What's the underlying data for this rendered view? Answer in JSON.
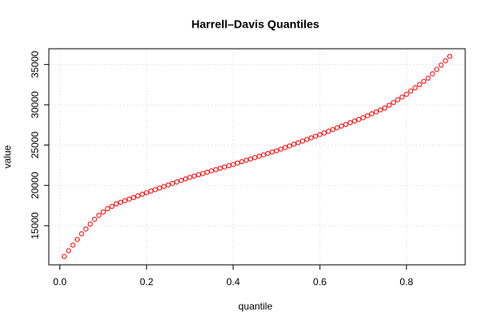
{
  "chart_data": {
    "type": "scatter",
    "title": "Harrell–Davis Quantiles",
    "x_label": "quantile",
    "y_label": "value",
    "x": [
      0.01,
      0.02,
      0.03,
      0.04,
      0.05,
      0.06,
      0.07,
      0.08,
      0.09,
      0.1,
      0.11,
      0.12,
      0.13,
      0.14,
      0.15,
      0.16,
      0.17,
      0.18,
      0.19,
      0.2,
      0.21,
      0.22,
      0.23,
      0.24,
      0.25,
      0.26,
      0.27,
      0.28,
      0.29,
      0.3,
      0.31,
      0.32,
      0.33,
      0.34,
      0.35,
      0.36,
      0.37,
      0.38,
      0.39,
      0.4,
      0.41,
      0.42,
      0.43,
      0.44,
      0.45,
      0.46,
      0.47,
      0.48,
      0.49,
      0.5,
      0.51,
      0.52,
      0.53,
      0.54,
      0.55,
      0.56,
      0.57,
      0.58,
      0.59,
      0.6,
      0.61,
      0.62,
      0.63,
      0.64,
      0.65,
      0.66,
      0.67,
      0.68,
      0.69,
      0.7,
      0.71,
      0.72,
      0.73,
      0.74,
      0.75,
      0.76,
      0.77,
      0.78,
      0.79,
      0.8,
      0.81,
      0.82,
      0.83,
      0.84,
      0.85,
      0.86,
      0.87,
      0.88,
      0.89,
      0.9
    ],
    "values": [
      11180,
      11900,
      12600,
      13300,
      14000,
      14600,
      15200,
      15800,
      16300,
      16700,
      17100,
      17400,
      17700,
      17900,
      18100,
      18300,
      18500,
      18700,
      18900,
      19100,
      19290,
      19480,
      19670,
      19860,
      20050,
      20240,
      20430,
      20620,
      20810,
      21000,
      21160,
      21320,
      21480,
      21640,
      21800,
      21960,
      22120,
      22280,
      22440,
      22600,
      22770,
      22940,
      23110,
      23280,
      23450,
      23620,
      23790,
      23960,
      24130,
      24300,
      24500,
      24700,
      24900,
      25100,
      25300,
      25500,
      25700,
      25900,
      26100,
      26300,
      26510,
      26720,
      26930,
      27140,
      27350,
      27560,
      27770,
      27980,
      28190,
      28400,
      28640,
      28880,
      29120,
      29360,
      29600,
      29940,
      30280,
      30620,
      30960,
      31300,
      31700,
      32100,
      32500,
      32900,
      33300,
      33840,
      34380,
      34920,
      35460,
      36000
    ],
    "color": "#ff0000",
    "xlim": [
      -0.0256,
      0.9356
    ],
    "xticks": [
      {
        "value": 0,
        "label": "0.0"
      },
      0.2,
      0.4,
      0.6,
      0.8
    ],
    "ylim": [
      10150,
      36950
    ],
    "yticks": [
      15000,
      20000,
      25000,
      30000,
      35000
    ],
    "grid": true
  }
}
